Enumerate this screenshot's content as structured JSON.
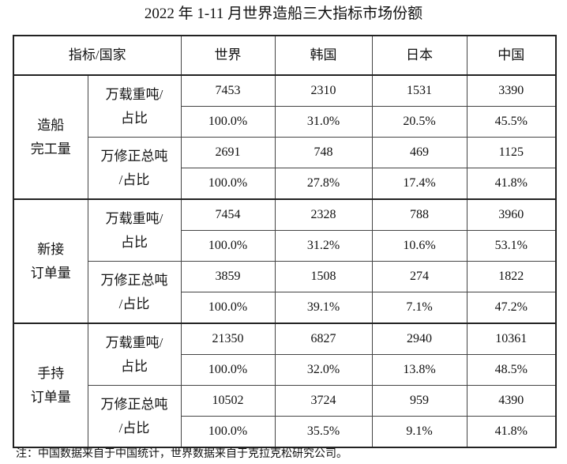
{
  "title": "2022 年 1-11 月世界造船三大指标市场份额",
  "table": {
    "header": [
      "指标/国家",
      "世界",
      "韩国",
      "日本",
      "中国"
    ],
    "groups": [
      {
        "label": "造船\n完工量",
        "items": [
          {
            "label": "万载重吨/\n占比",
            "rows": [
              [
                "7453",
                "2310",
                "1531",
                "3390"
              ],
              [
                "100.0%",
                "31.0%",
                "20.5%",
                "45.5%"
              ]
            ]
          },
          {
            "label": "万修正总吨\n/占比",
            "rows": [
              [
                "2691",
                "748",
                "469",
                "1125"
              ],
              [
                "100.0%",
                "27.8%",
                "17.4%",
                "41.8%"
              ]
            ]
          }
        ]
      },
      {
        "label": "新接\n订单量",
        "items": [
          {
            "label": "万载重吨/\n占比",
            "rows": [
              [
                "7454",
                "2328",
                "788",
                "3960"
              ],
              [
                "100.0%",
                "31.2%",
                "10.6%",
                "53.1%"
              ]
            ]
          },
          {
            "label": "万修正总吨\n/占比",
            "rows": [
              [
                "3859",
                "1508",
                "274",
                "1822"
              ],
              [
                "100.0%",
                "39.1%",
                "7.1%",
                "47.2%"
              ]
            ]
          }
        ]
      },
      {
        "label": "手持\n订单量",
        "items": [
          {
            "label": "万载重吨/\n占比",
            "rows": [
              [
                "21350",
                "6827",
                "2940",
                "10361"
              ],
              [
                "100.0%",
                "32.0%",
                "13.8%",
                "48.5%"
              ]
            ]
          },
          {
            "label": "万修正总吨\n/占比",
            "rows": [
              [
                "10502",
                "3724",
                "959",
                "4390"
              ],
              [
                "100.0%",
                "35.5%",
                "9.1%",
                "41.8%"
              ]
            ]
          }
        ]
      }
    ]
  },
  "note": "注：中国数据来自于中国统计，世界数据来自于克拉克松研究公司。"
}
